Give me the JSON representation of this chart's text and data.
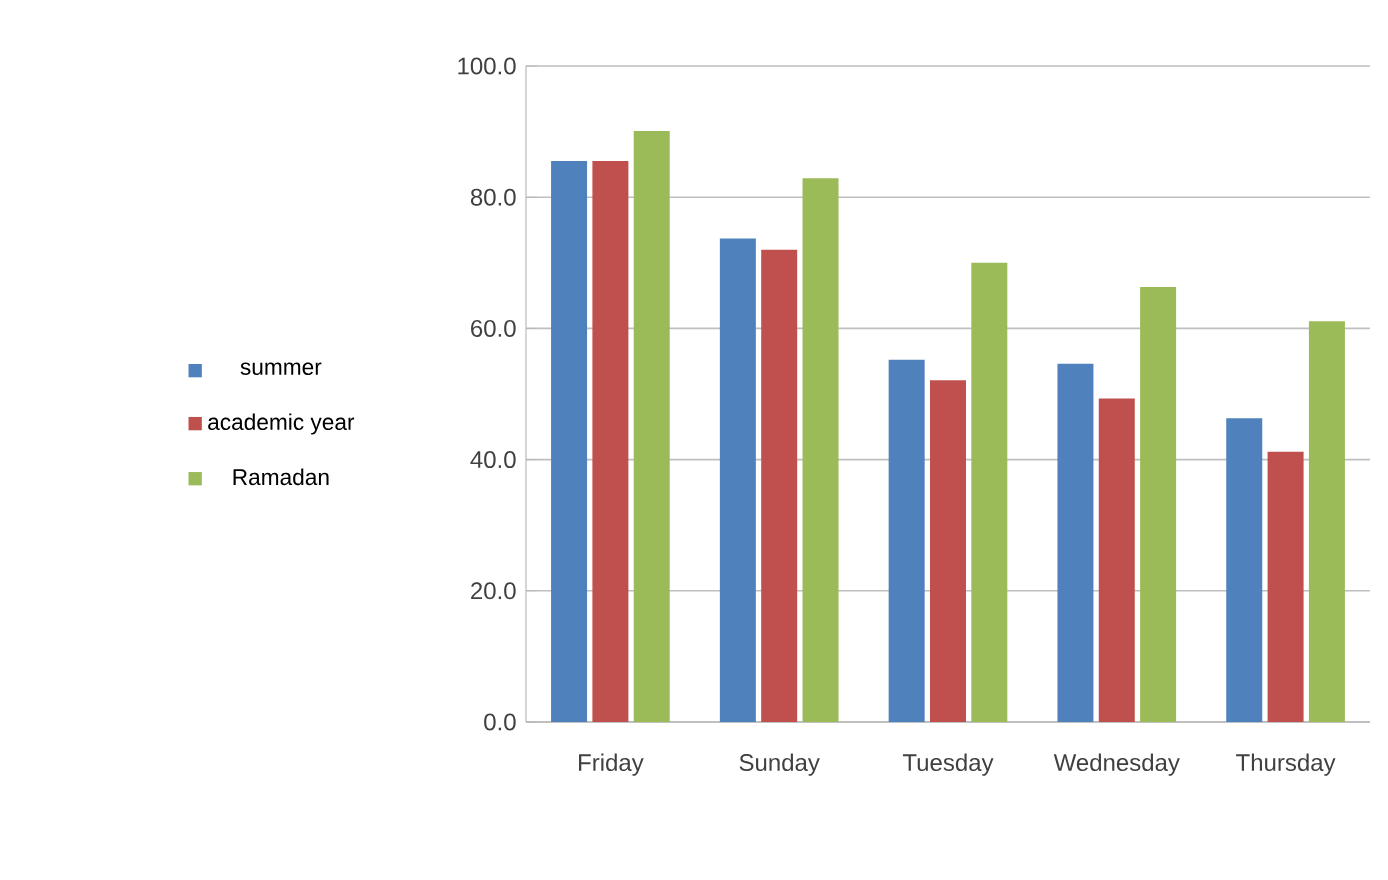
{
  "chart_data": {
    "type": "bar",
    "categories": [
      "Friday",
      "Sunday",
      "Tuesday",
      "Wednesday",
      "Thursday"
    ],
    "series": [
      {
        "name": "summer",
        "color": "#4f81bd",
        "values": [
          85.5,
          73.7,
          55.2,
          54.6,
          46.3
        ]
      },
      {
        "name": "academic year",
        "color": "#c0504d",
        "values": [
          85.5,
          72.0,
          52.1,
          49.3,
          41.2
        ]
      },
      {
        "name": "Ramadan",
        "color": "#9bbb59",
        "values": [
          90.1,
          82.9,
          70.0,
          66.3,
          61.1
        ]
      }
    ],
    "ylim": [
      0,
      100
    ],
    "yticks": [
      {
        "value": 0,
        "label": "0.0"
      },
      {
        "value": 20,
        "label": "20.0"
      },
      {
        "value": 40,
        "label": "40.0"
      },
      {
        "value": 60,
        "label": "60.0"
      },
      {
        "value": 80,
        "label": "80.0"
      },
      {
        "value": 100,
        "label": "100.0"
      }
    ],
    "grid": "y",
    "legend": "left"
  }
}
